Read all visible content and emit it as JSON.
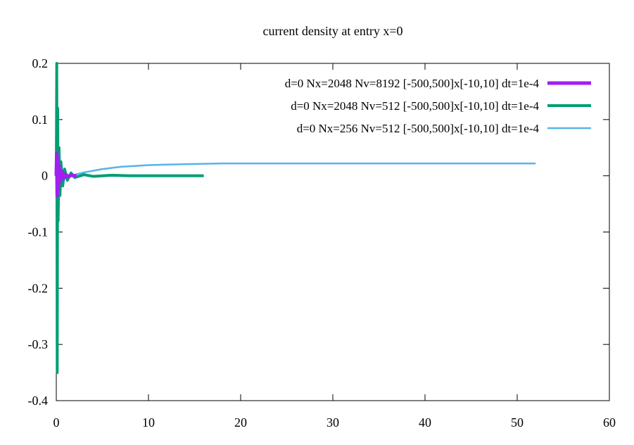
{
  "chart_data": {
    "type": "line",
    "title": "current density at entry x=0",
    "xlabel": "",
    "ylabel": "",
    "xlim": [
      0,
      60
    ],
    "ylim": [
      -0.4,
      0.2
    ],
    "x_ticks": [
      0,
      10,
      20,
      30,
      40,
      50,
      60
    ],
    "y_ticks": [
      -0.4,
      -0.3,
      -0.2,
      -0.1,
      0,
      0.1,
      0.2
    ],
    "x_tick_labels": [
      "0",
      "10",
      "20",
      "30",
      "40",
      "50",
      "60"
    ],
    "y_tick_labels": [
      "-0.4",
      "-0.3",
      "-0.2",
      "-0.1",
      "0",
      "0.1",
      "0.2"
    ],
    "grid": false,
    "legend_position": "top-right",
    "series": [
      {
        "name": "d=0 Nx=2048 Nv=8192 [-500,500]x[-10,10] dt=1e-4",
        "color": "#a020f0",
        "x": [
          0,
          0.05,
          0.1,
          0.15,
          0.2,
          0.3,
          0.4,
          0.6,
          0.8,
          1.0,
          1.3,
          1.6,
          2.0,
          2.2
        ],
        "y": [
          0,
          0.04,
          -0.035,
          0.03,
          -0.025,
          0.018,
          -0.012,
          0.008,
          -0.005,
          0.003,
          -0.002,
          0.001,
          0,
          0
        ]
      },
      {
        "name": "d=0 Nx=2048 Nv=512 [-500,500]x[-10,10] dt=1e-4",
        "color": "#009e73",
        "x": [
          0,
          0.05,
          0.1,
          0.15,
          0.2,
          0.3,
          0.4,
          0.5,
          0.7,
          0.9,
          1.2,
          1.6,
          2.0,
          3.0,
          4.0,
          6.0,
          8.0,
          10.0,
          12.0,
          14.0,
          16.0
        ],
        "y": [
          0,
          0.2,
          -0.35,
          0.12,
          -0.08,
          0.05,
          -0.035,
          0.025,
          -0.018,
          0.012,
          -0.008,
          0.005,
          -0.003,
          0.002,
          -0.001,
          0.001,
          0,
          0,
          0,
          0,
          0
        ]
      },
      {
        "name": "d=0 Nx=256 Nv=512 [-500,500]x[-10,10] dt=1e-4",
        "color": "#56b4e9",
        "x": [
          0,
          0.1,
          0.2,
          0.3,
          0.5,
          0.8,
          1.0,
          1.5,
          2.0,
          3.0,
          4.0,
          5.0,
          6.0,
          7.0,
          8.0,
          10.0,
          12.0,
          15.0,
          18.0,
          20.0,
          25.0,
          30.0,
          35.0,
          40.0,
          45.0,
          50.0,
          52.0
        ],
        "y": [
          0,
          0.008,
          -0.006,
          0.004,
          -0.002,
          0.001,
          0.002,
          0.001,
          0.002,
          0.006,
          0.009,
          0.012,
          0.014,
          0.016,
          0.017,
          0.019,
          0.02,
          0.021,
          0.022,
          0.022,
          0.022,
          0.022,
          0.022,
          0.022,
          0.022,
          0.022,
          0.022
        ]
      }
    ]
  }
}
